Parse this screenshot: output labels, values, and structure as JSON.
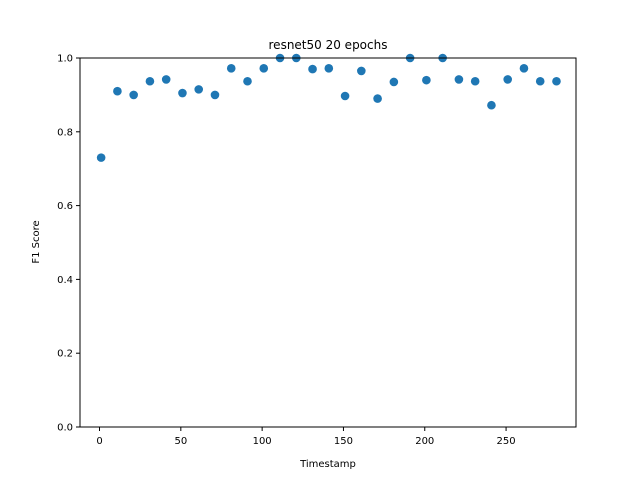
{
  "chart_data": {
    "type": "scatter",
    "title": "resnet50  20 epochs",
    "xlabel": "Timestamp",
    "ylabel": "F1 Score",
    "xlim": [
      -12,
      293
    ],
    "ylim": [
      0,
      1
    ],
    "xticks": [
      0,
      50,
      100,
      150,
      200,
      250
    ],
    "yticks": [
      0.0,
      0.2,
      0.4,
      0.6,
      0.8,
      1.0
    ],
    "ytick_labels": [
      "0.0",
      "0.2",
      "0.4",
      "0.6",
      "0.8",
      "1.0"
    ],
    "grid": false,
    "marker_color": "#1f77b4",
    "series": [
      {
        "x": [
          1,
          11,
          21,
          31,
          41,
          51,
          61,
          71,
          81,
          91,
          101,
          111,
          121,
          131,
          141,
          151,
          161,
          171,
          181,
          191,
          201,
          211,
          221,
          231,
          241,
          251,
          261,
          271,
          281
        ],
        "y": [
          0.73,
          0.91,
          0.9,
          0.937,
          0.942,
          0.905,
          0.915,
          0.9,
          0.972,
          0.937,
          0.972,
          1.0,
          1.0,
          0.97,
          0.972,
          0.897,
          0.965,
          0.89,
          0.935,
          1.0,
          0.94,
          1.0,
          0.942,
          0.937,
          0.872,
          0.942,
          0.972,
          0.937,
          0.937
        ]
      }
    ]
  }
}
